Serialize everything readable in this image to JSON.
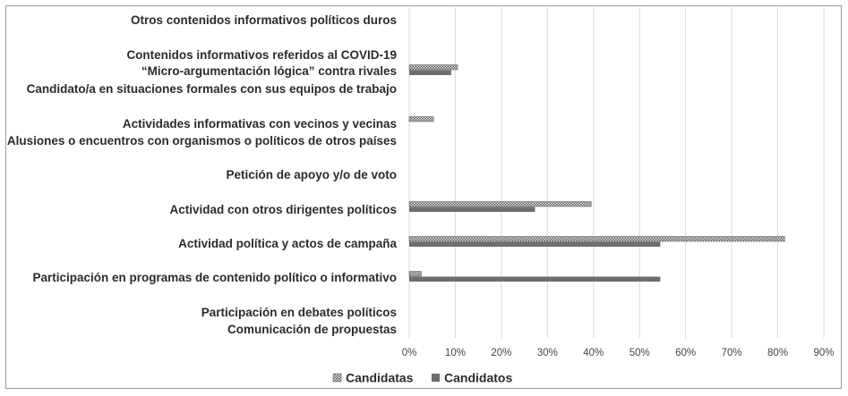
{
  "chart_data": {
    "type": "bar",
    "orientation": "horizontal",
    "categories": [
      "Otros contenidos informativos políticos duros",
      "Contenidos informativos referidos al COVID-19",
      "“Micro-argumentación lógica” contra rivales",
      "Candidato/a en situaciones formales con sus equipos de trabajo",
      "Actividades informativas con vecinos y vecinas",
      "Alusiones o encuentros con organismos o políticos de otros países",
      "Petición de apoyo y/o de voto",
      "Actividad con otros dirigentes políticos",
      "Actividad política y actos de campaña",
      "Participación en programas de contenido político o informativo",
      "Participación en debates políticos",
      "Comunicación de propuestas"
    ],
    "series": [
      {
        "name": "Candidatas",
        "values": [
          0,
          0,
          10.5,
          0,
          5.3,
          0,
          0,
          39.5,
          81.5,
          2.6,
          0,
          0
        ]
      },
      {
        "name": "Candidatos",
        "values": [
          0,
          0,
          9.1,
          0,
          0,
          0,
          0,
          27.3,
          54.5,
          54.5,
          0,
          0
        ]
      }
    ],
    "x_ticks": [
      "0%",
      "10%",
      "20%",
      "30%",
      "40%",
      "50%",
      "60%",
      "70%",
      "80%",
      "90%"
    ],
    "xlim": [
      0,
      90
    ],
    "grid": true,
    "legend": "bottom",
    "colors": {
      "Candidatas": "#a9a9a9",
      "Candidatos": "#6d6d6d",
      "grid": "#d9d9d9"
    }
  }
}
